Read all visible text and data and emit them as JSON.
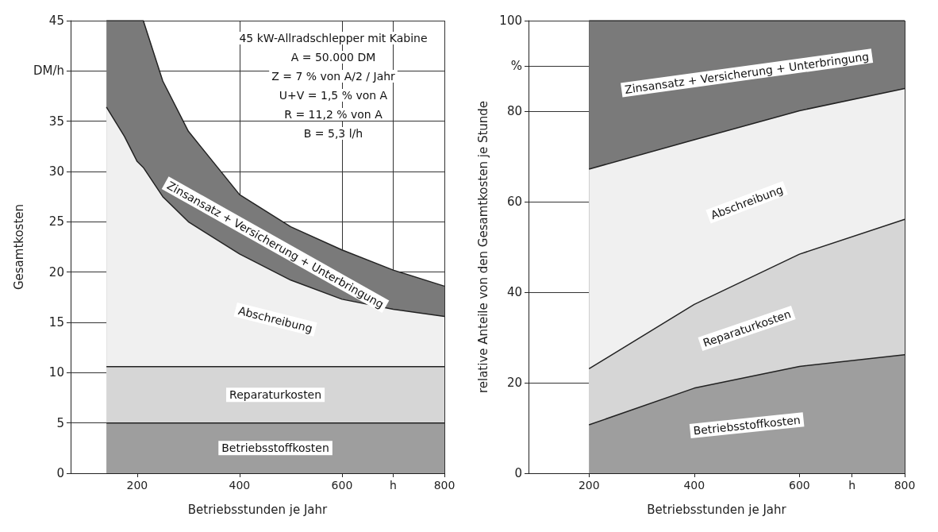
{
  "chart_data": [
    {
      "type": "area",
      "stacked": true,
      "xlabel": "Betriebsstunden je Jahr",
      "ylabel": "Gesamtkosten",
      "grid": true,
      "marker": "none",
      "x": [
        140,
        175,
        200,
        212,
        250,
        300,
        400,
        500,
        600,
        700,
        800
      ],
      "xlim": [
        70,
        800
      ],
      "xticks": [
        200,
        400,
        600,
        {
          "value": 700,
          "label": "h"
        },
        800
      ],
      "ylim": [
        0,
        45
      ],
      "yticks": [
        0,
        5,
        10,
        15,
        20,
        25,
        30,
        35,
        {
          "value": 40,
          "label": "DM/h"
        },
        45
      ],
      "series": [
        {
          "name": "Betriebsstoffkosten",
          "color": "#9e9e9e",
          "values": [
            5,
            5,
            5,
            5,
            5,
            5,
            5,
            5,
            5,
            5,
            5
          ]
        },
        {
          "name": "Reparaturkosten",
          "color": "#d6d6d6",
          "values": [
            5.6,
            5.6,
            5.6,
            5.6,
            5.6,
            5.6,
            5.6,
            5.6,
            5.6,
            5.6,
            5.6
          ]
        },
        {
          "name": "Abschreibung",
          "color": "#f0f0f0",
          "values": [
            25.8,
            22.9,
            20.4,
            19.8,
            16.9,
            14.4,
            11.2,
            8.6,
            6.7,
            5.7,
            5.0
          ]
        },
        {
          "name": "Zinsansatz + Versicherung + Unterbringung",
          "color": "#7a7a7a",
          "values": [
            8.6,
            11.5,
            14.0,
            14.6,
            11.5,
            9.0,
            5.9,
            5.3,
            4.9,
            3.9,
            3.0
          ]
        }
      ],
      "annotations": [
        "45 kW-Allradschlepper mit Kabine",
        "A = 50.000 DM",
        "Z = 7 % von A/2 / Jahr",
        "U+V = 1,5 % von A",
        "R = 11,2 % von A",
        "B = 5,3 l/h"
      ]
    },
    {
      "type": "area",
      "stacked": true,
      "xlabel": "Betriebsstunden je Jahr",
      "ylabel": "relative Anteile von den Gesamtkosten je Stunde",
      "grid": true,
      "marker": "none",
      "x": [
        200,
        400,
        600,
        800
      ],
      "xlim": [
        85,
        800
      ],
      "xticks": [
        200,
        400,
        600,
        {
          "value": 700,
          "label": "h"
        },
        800
      ],
      "ylim": [
        0,
        100
      ],
      "yticks": [
        0,
        20,
        40,
        60,
        80,
        {
          "value": 90,
          "label": "%"
        },
        100
      ],
      "series": [
        {
          "name": "Betriebsstoffkosten",
          "color": "#9e9e9e",
          "values": [
            10.7,
            18.8,
            23.6,
            26.2
          ]
        },
        {
          "name": "Reparaturkosten",
          "color": "#d6d6d6",
          "values": [
            12.4,
            18.5,
            24.8,
            29.9
          ]
        },
        {
          "name": "Abschreibung",
          "color": "#f0f0f0",
          "values": [
            44.1,
            36.4,
            31.7,
            28.9
          ]
        },
        {
          "name": "Zinsansatz + Versicherung + Unterbringung",
          "color": "#7a7a7a",
          "values": [
            32.8,
            26.3,
            19.9,
            15.0
          ]
        }
      ]
    }
  ]
}
